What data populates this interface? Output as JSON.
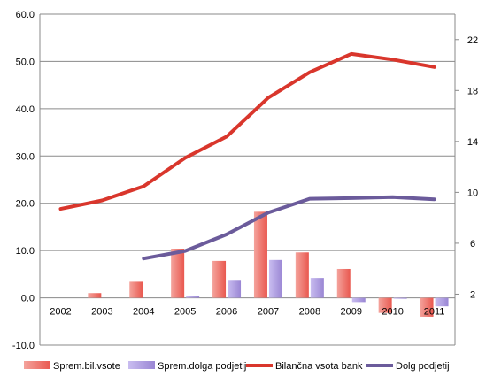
{
  "chart_data": {
    "type": "bar+line",
    "categories": [
      "2002",
      "2003",
      "2004",
      "2005",
      "2006",
      "2007",
      "2008",
      "2009",
      "2010",
      "2011"
    ],
    "left_axis": {
      "ylim": [
        -10,
        60
      ],
      "ticks": [
        "-10.0",
        "0.0",
        "10.0",
        "20.0",
        "30.0",
        "40.0",
        "50.0",
        "60.0"
      ]
    },
    "right_axis": {
      "ylim": [
        -2,
        24
      ],
      "ticks": [
        "2",
        "6",
        "10",
        "14",
        "18",
        "22"
      ]
    },
    "bars": [
      {
        "name": "Sprem.bil.vsote",
        "axis": "left",
        "color": "#ef6b6b",
        "values": [
          null,
          1.0,
          3.4,
          10.4,
          7.8,
          18.2,
          9.6,
          6.1,
          -3.2,
          -4.0
        ]
      },
      {
        "name": "Sprem.dolga podjetij",
        "axis": "left",
        "color": "#a692d8",
        "values": [
          null,
          null,
          null,
          0.4,
          3.8,
          8.0,
          4.2,
          -0.9,
          -0.2,
          -1.8
        ]
      }
    ],
    "lines": [
      {
        "name": "Bilančna vsota bank",
        "axis": "left",
        "color": "#d9362c",
        "values": [
          18.8,
          20.6,
          23.6,
          29.6,
          34.1,
          42.3,
          47.7,
          51.6,
          50.4,
          48.8
        ]
      },
      {
        "name": "Dolg podjetij",
        "axis": "right",
        "color": "#6b5b9b",
        "values": [
          null,
          null,
          4.8,
          5.4,
          6.7,
          8.4,
          9.5,
          9.55,
          9.63,
          9.45
        ]
      }
    ],
    "legend": [
      "Sprem.bil.vsote",
      "Sprem.dolga podjetij",
      "Bilančna vsota bank",
      "Dolg podjetij"
    ],
    "legend_position": "bottom",
    "grid": true
  }
}
